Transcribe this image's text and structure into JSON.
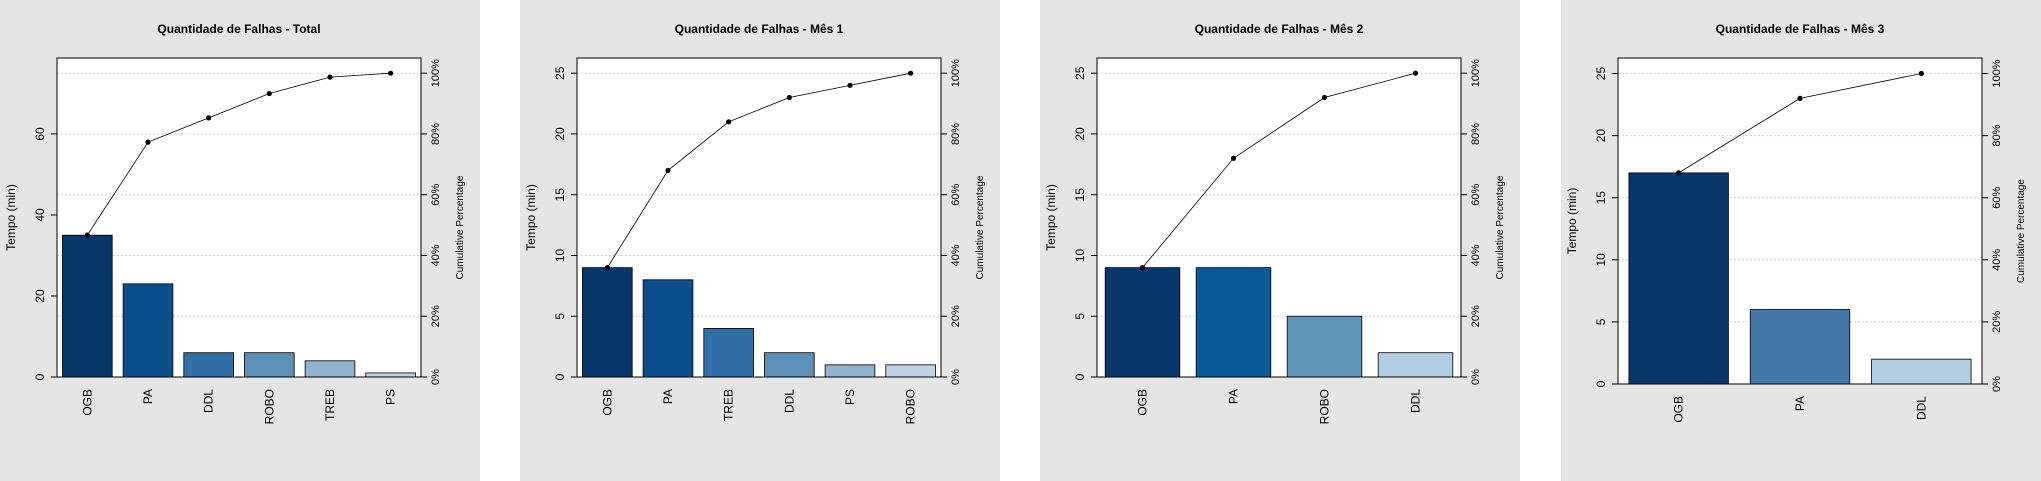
{
  "chart_data": [
    {
      "type": "bar",
      "title": "Quantidade de Falhas - Total",
      "ylabel": "Tempo (min)",
      "y2label": "Cumulative Percentage",
      "categories": [
        "OGB",
        "PA",
        "DDL",
        "ROBO",
        "TREB",
        "PS"
      ],
      "values": [
        35,
        23,
        6,
        6,
        4,
        1
      ],
      "cumulative_percent": [
        46.7,
        77.3,
        85.3,
        93.3,
        98.7,
        100
      ],
      "ylim": [
        0,
        78.75
      ],
      "yticks": [
        0,
        20,
        40,
        60
      ],
      "y2ticks": [
        "0%",
        "20%",
        "40%",
        "60%",
        "80%",
        "100%"
      ],
      "colors": [
        "#08386b",
        "#0a4f8c",
        "#2f6fa6",
        "#5d90b6",
        "#8fb2cf",
        "#bed4e6"
      ]
    },
    {
      "type": "bar",
      "title": "Quantidade de Falhas - Mês 1",
      "ylabel": "Tempo (min)",
      "y2label": "Cumulative Percentage",
      "categories": [
        "OGB",
        "PA",
        "TREB",
        "DDL",
        "PS",
        "ROBO"
      ],
      "values": [
        9,
        8,
        4,
        2,
        1,
        1
      ],
      "cumulative_percent": [
        36,
        68,
        84,
        92,
        96,
        100
      ],
      "ylim": [
        0,
        26.25
      ],
      "yticks": [
        0,
        5,
        10,
        15,
        20,
        25
      ],
      "y2ticks": [
        "0%",
        "20%",
        "40%",
        "60%",
        "80%",
        "100%"
      ],
      "colors": [
        "#08386b",
        "#0a4f8c",
        "#2f6fa6",
        "#5d90b6",
        "#8fb2cf",
        "#bed4e6"
      ]
    },
    {
      "type": "bar",
      "title": "Quantidade de Falhas - Mês 2",
      "ylabel": "Tempo (min)",
      "y2label": "Cumulative Percentage",
      "categories": [
        "OGB",
        "PA",
        "ROBO",
        "DDL"
      ],
      "values": [
        9,
        9,
        5,
        2
      ],
      "cumulative_percent": [
        36,
        72,
        92,
        100
      ],
      "ylim": [
        0,
        26.25
      ],
      "yticks": [
        0,
        5,
        10,
        15,
        20,
        25
      ],
      "y2ticks": [
        "0%",
        "20%",
        "40%",
        "60%",
        "80%",
        "100%"
      ],
      "colors": [
        "#08386b",
        "#0a5a9a",
        "#6096b8",
        "#b0cde2"
      ]
    },
    {
      "type": "bar",
      "title": "Quantidade de Falhas - Mês 3",
      "ylabel": "Tempo (min)",
      "y2label": "Cumulative Percentage",
      "categories": [
        "OGB",
        "PA",
        "DDL"
      ],
      "values": [
        17,
        6,
        2
      ],
      "cumulative_percent": [
        68,
        92,
        100
      ],
      "ylim": [
        0,
        26.25
      ],
      "yticks": [
        0,
        5,
        10,
        15,
        20,
        25
      ],
      "y2ticks": [
        "0%",
        "20%",
        "40%",
        "60%",
        "80%",
        "100%"
      ],
      "colors": [
        "#08386b",
        "#4378a8",
        "#b0cde2"
      ]
    }
  ]
}
